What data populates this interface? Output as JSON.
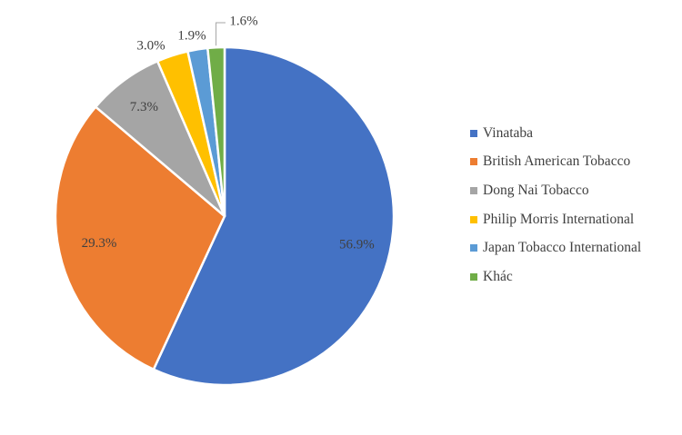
{
  "chart_data": {
    "type": "pie",
    "categories": [
      "Vinataba",
      "British American Tobacco",
      "Dong Nai Tobacco",
      "Philip Morris International",
      "Japan Tobacco International",
      "Khác"
    ],
    "values": [
      56.9,
      29.3,
      7.3,
      3.0,
      1.9,
      1.6
    ],
    "value_labels": [
      "56.9%",
      "29.3%",
      "7.3%",
      "3.0%",
      "1.9%",
      "1.6%"
    ],
    "colors": [
      "#4472C4",
      "#ED7D31",
      "#A5A5A5",
      "#FFC000",
      "#5B9BD5",
      "#70AD47"
    ],
    "legend_position": "right",
    "start_angle": "top",
    "direction": "clockwise"
  }
}
